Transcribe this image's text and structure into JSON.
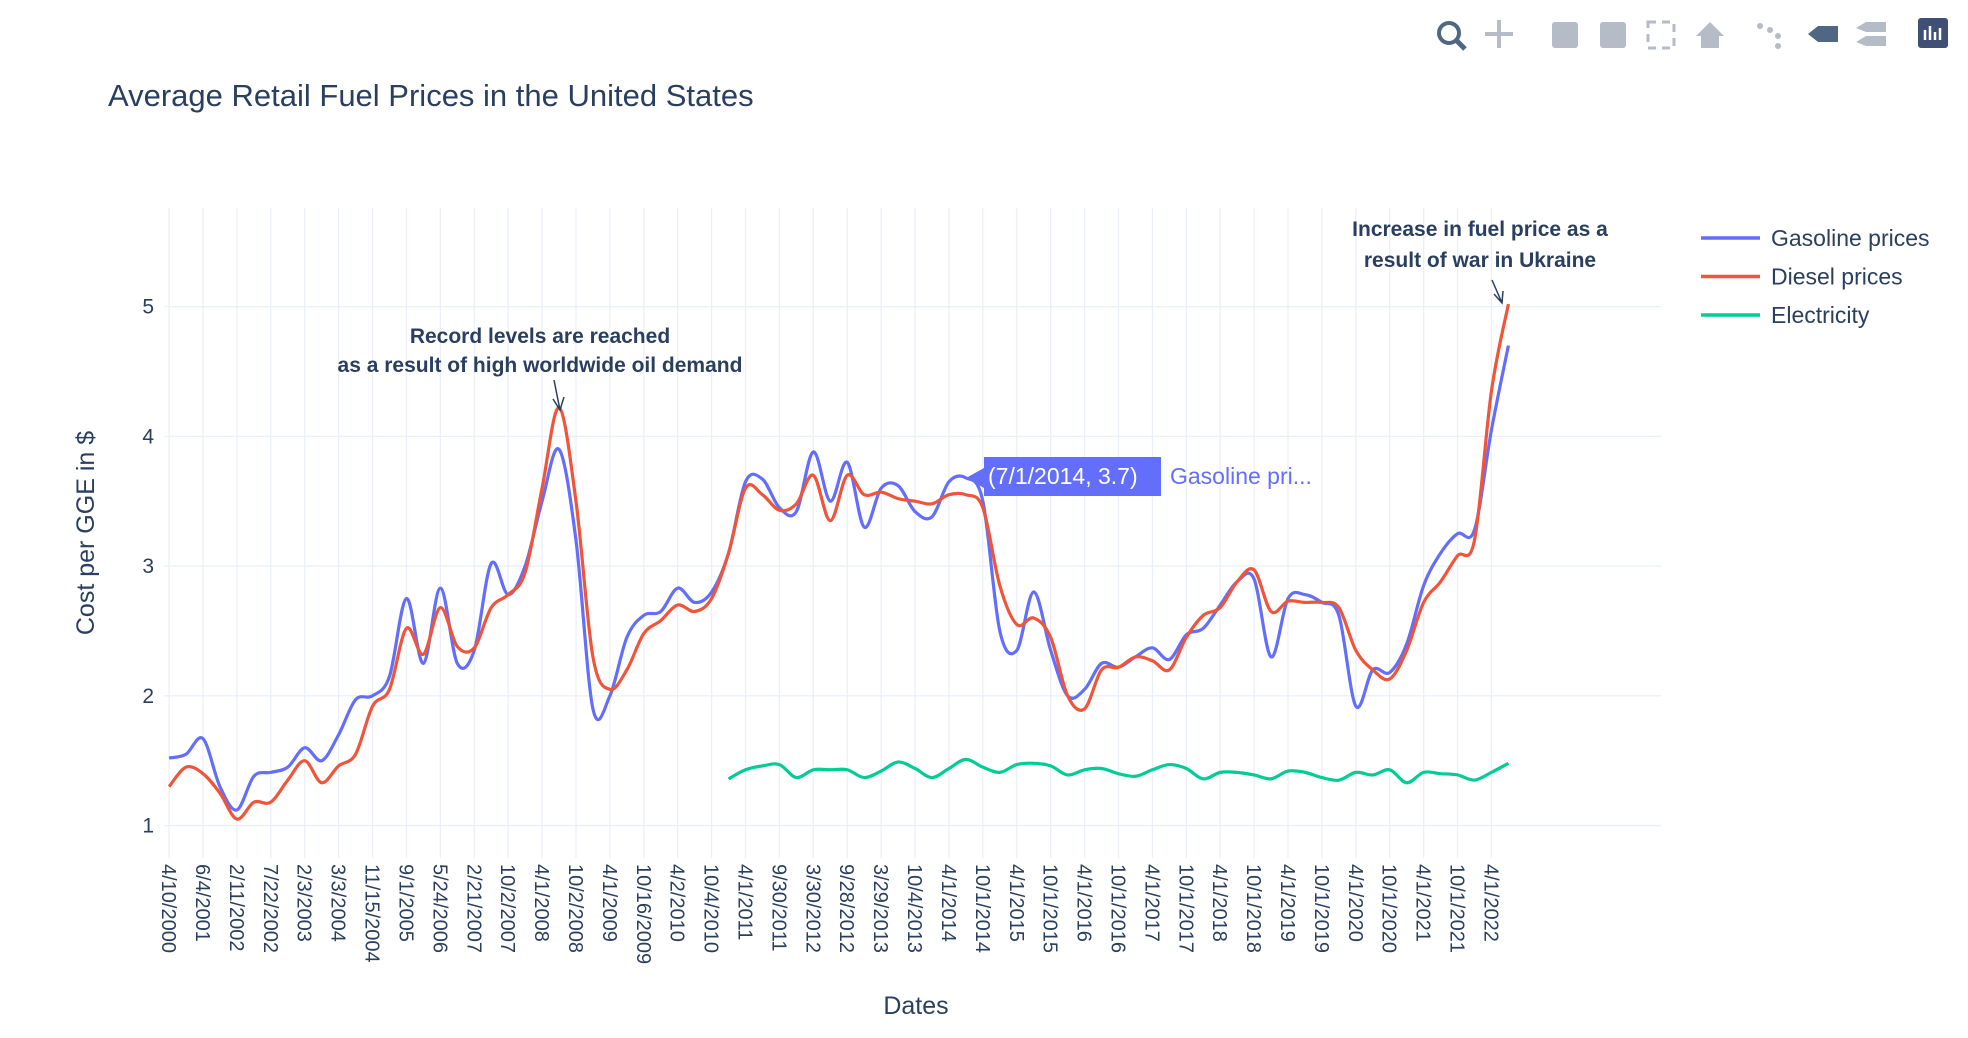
{
  "chart_data": {
    "type": "line",
    "title": "Average Retail Fuel Prices in the United States",
    "x_title": "Dates",
    "y_title": "Cost per GGE in $",
    "categories": [
      "4/10/2000",
      null,
      "6/4/2001",
      null,
      "2/11/2002",
      null,
      "7/22/2002",
      null,
      "2/3/2003",
      null,
      "3/3/2004",
      null,
      "11/15/2004",
      null,
      "9/1/2005",
      null,
      "5/24/2006",
      null,
      "2/21/2007",
      null,
      "10/2/2007",
      null,
      "4/1/2008",
      null,
      "10/2/2008",
      null,
      "4/1/2009",
      null,
      "10/16/2009",
      null,
      "4/2/2010",
      null,
      "10/4/2010",
      null,
      "4/1/2011",
      null,
      "9/30/2011",
      null,
      "3/30/2012",
      null,
      "9/28/2012",
      null,
      "3/29/2013",
      null,
      "10/4/2013",
      null,
      "4/1/2014",
      null,
      "10/1/2014",
      null,
      "4/1/2015",
      null,
      "10/1/2015",
      null,
      "4/1/2016",
      null,
      "10/1/2016",
      null,
      "4/1/2017",
      null,
      "10/1/2017",
      null,
      "4/1/2018",
      null,
      "10/1/2018",
      null,
      "4/1/2019",
      null,
      "10/1/2019",
      null,
      "4/1/2020",
      null,
      "10/1/2020",
      null,
      "4/1/2021",
      null,
      "10/1/2021",
      null,
      "4/1/2022",
      null
    ],
    "series": [
      {
        "name": "Gasoline prices",
        "color": "#636efa",
        "values": [
          1.52,
          1.55,
          1.67,
          1.3,
          1.12,
          1.38,
          1.41,
          1.45,
          1.6,
          1.5,
          1.7,
          1.97,
          2.0,
          2.15,
          2.75,
          2.25,
          2.83,
          2.25,
          2.35,
          3.02,
          2.78,
          3.0,
          3.5,
          3.9,
          3.2,
          1.9,
          2.0,
          2.45,
          2.62,
          2.65,
          2.83,
          2.72,
          2.8,
          3.1,
          3.65,
          3.67,
          3.45,
          3.42,
          3.88,
          3.5,
          3.8,
          3.3,
          3.6,
          3.62,
          3.42,
          3.38,
          3.65,
          3.68,
          3.5,
          2.5,
          2.35,
          2.8,
          2.35,
          2.0,
          2.05,
          2.25,
          2.22,
          2.3,
          2.37,
          2.28,
          2.47,
          2.52,
          2.7,
          2.88,
          2.9,
          2.3,
          2.75,
          2.78,
          2.72,
          2.62,
          1.92,
          2.2,
          2.18,
          2.4,
          2.85,
          3.1,
          3.25,
          3.28,
          4.05,
          4.7
        ]
      },
      {
        "name": "Diesel prices",
        "color": "#ef553b",
        "values": [
          1.3,
          1.45,
          1.4,
          1.25,
          1.05,
          1.18,
          1.18,
          1.35,
          1.5,
          1.33,
          1.46,
          1.55,
          1.92,
          2.05,
          2.52,
          2.32,
          2.68,
          2.38,
          2.37,
          2.68,
          2.78,
          2.95,
          3.6,
          4.22,
          3.5,
          2.3,
          2.05,
          2.2,
          2.48,
          2.58,
          2.7,
          2.65,
          2.75,
          3.1,
          3.6,
          3.55,
          3.43,
          3.48,
          3.7,
          3.35,
          3.7,
          3.55,
          3.57,
          3.52,
          3.5,
          3.48,
          3.55,
          3.55,
          3.45,
          2.85,
          2.55,
          2.6,
          2.45,
          2.0,
          1.9,
          2.2,
          2.22,
          2.3,
          2.27,
          2.2,
          2.45,
          2.62,
          2.68,
          2.88,
          2.97,
          2.65,
          2.73,
          2.72,
          2.72,
          2.68,
          2.35,
          2.2,
          2.13,
          2.35,
          2.72,
          2.88,
          3.08,
          3.2,
          4.35,
          5.02
        ]
      },
      {
        "name": "Electricity",
        "color": "#00cc96",
        "values": [
          null,
          null,
          null,
          null,
          null,
          null,
          null,
          null,
          null,
          null,
          null,
          null,
          null,
          null,
          null,
          null,
          null,
          null,
          null,
          null,
          null,
          null,
          null,
          null,
          null,
          null,
          null,
          null,
          null,
          null,
          null,
          null,
          null,
          1.36,
          1.43,
          1.46,
          1.47,
          1.37,
          1.43,
          1.43,
          1.43,
          1.37,
          1.42,
          1.49,
          1.44,
          1.37,
          1.44,
          1.51,
          1.45,
          1.41,
          1.47,
          1.48,
          1.46,
          1.39,
          1.43,
          1.44,
          1.4,
          1.38,
          1.43,
          1.47,
          1.44,
          1.36,
          1.41,
          1.41,
          1.39,
          1.36,
          1.42,
          1.41,
          1.37,
          1.35,
          1.41,
          1.39,
          1.43,
          1.33,
          1.41,
          1.4,
          1.39,
          1.35,
          1.41,
          1.48
        ]
      }
    ],
    "xlim": [
      -0.3,
      88
    ],
    "ylim": [
      0.75,
      5.76
    ],
    "yticks": [
      1,
      2,
      3,
      4,
      5
    ],
    "grid": true,
    "legend": "right",
    "annotations": [
      {
        "lines": [
          "Record levels are reached",
          "as a result of high worldwide oil demand"
        ]
      },
      {
        "lines": [
          "Increase in fuel price as a",
          "result of war in Ukraine"
        ]
      }
    ],
    "hover": {
      "label": "(7/1/2014, 3.7)",
      "name": "Gasoline pri..."
    }
  }
}
